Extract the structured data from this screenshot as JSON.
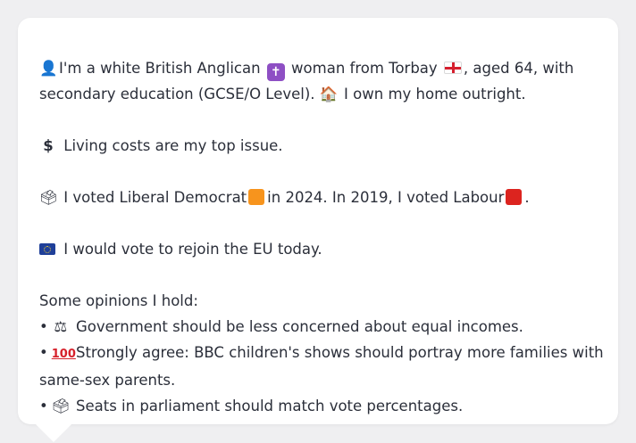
{
  "bubble": {
    "intro": {
      "icon": "person-icon",
      "part1": "I'm a white British Anglican",
      "icon2": "latin-cross-icon",
      "part2": "woman from Torbay",
      "icon3": "england-flag-icon",
      "part3": ", aged 64, with",
      "line2_part1": "secondary education (GCSE/O Level).",
      "icon4": "house-icon",
      "line2_part2": "I own my home outright."
    },
    "issue": {
      "icon": "dollar-icon",
      "text": "Living costs are my top issue."
    },
    "vote": {
      "icon": "ballot-box-icon",
      "part1": "I voted Liberal Democrat",
      "ld_color": "#f7941d",
      "part2": "in 2024. In 2019, I voted Labour",
      "lab_color": "#dc241f",
      "part3": "."
    },
    "eu": {
      "icon": "eu-flag-icon",
      "text": "I would vote to rejoin the EU today."
    },
    "opinions": {
      "heading": "Some opinions I hold:",
      "bullet": "•",
      "items": [
        {
          "icon": "scales-icon",
          "line1": "Government should be less concerned about equal incomes.",
          "line2": ""
        },
        {
          "icon": "hundred-points-icon",
          "line1": "Strongly agree: BBC children's shows should portray more families with",
          "line2": "same-sex parents."
        },
        {
          "icon": "ballot-box-icon",
          "line1": "Seats in parliament should match vote percentages.",
          "line2": ""
        }
      ]
    }
  }
}
